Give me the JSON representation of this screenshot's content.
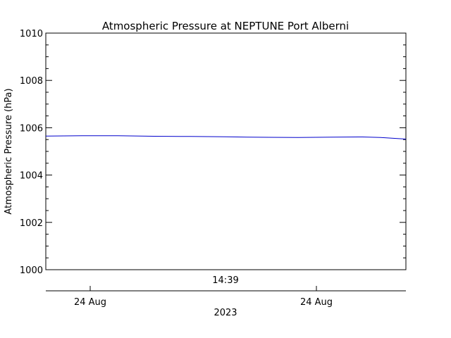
{
  "chart_data": {
    "type": "line",
    "title": "Atmospheric Pressure at NEPTUNE Port Alberni",
    "ylabel": "Atmospheric Pressure (hPa)",
    "ylim": [
      1000,
      1010
    ],
    "y_ticks": [
      "1000",
      "1002",
      "1004",
      "1006",
      "1008",
      "1010"
    ],
    "x_axis_time_label": "14:39",
    "x_date_labels": [
      "24 Aug",
      "24 Aug"
    ],
    "x_year_label": "2023",
    "grid": false,
    "series": [
      {
        "color": "#0000cc",
        "points": [
          [
            0.0,
            1005.65
          ],
          [
            0.1,
            1005.66
          ],
          [
            0.2,
            1005.66
          ],
          [
            0.3,
            1005.64
          ],
          [
            0.4,
            1005.63
          ],
          [
            0.5,
            1005.62
          ],
          [
            0.56,
            1005.6
          ],
          [
            0.7,
            1005.59
          ],
          [
            0.8,
            1005.6
          ],
          [
            0.88,
            1005.61
          ],
          [
            0.93,
            1005.59
          ],
          [
            1.0,
            1005.52
          ]
        ]
      }
    ]
  }
}
